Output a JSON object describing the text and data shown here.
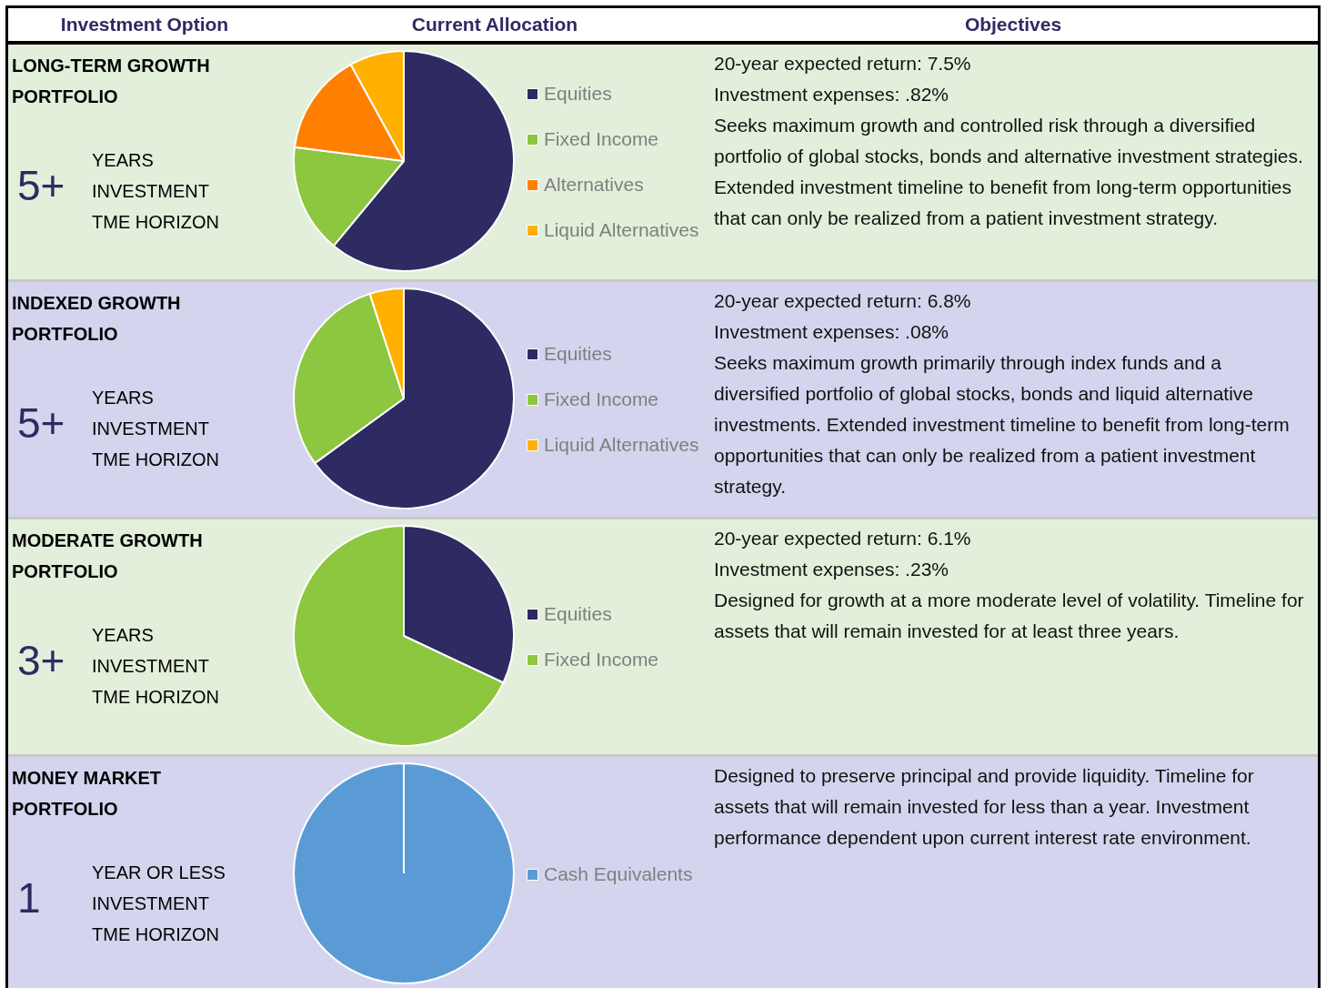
{
  "chart_data": [
    {
      "type": "other",
      "annotations": [
        "Investment Option",
        "Current Allocation",
        "Objectives"
      ]
    },
    {
      "type": "other",
      "title": "LONG-TERM GROWTH PORTFOLIO",
      "annotations": [
        "5+",
        "YEARS",
        "INVESTMENT",
        "TME HORIZON"
      ]
    },
    {
      "type": "pie",
      "categories": [
        "Equities",
        "Fixed Income",
        "Alternatives",
        "Liquid Alternatives"
      ],
      "values": [
        61,
        16,
        15,
        8
      ],
      "colors": [
        "#2e2a62",
        "#8dc63f",
        "#ff8000",
        "#ffb000"
      ],
      "legend": "right"
    },
    {
      "type": "other",
      "annotations": [
        "20-year expected return: 7.5%",
        "Investment expenses: .82%",
        "Seeks maximum growth and controlled risk through a diversified portfolio of global stocks, bonds and alternative investment strategies. Extended investment timeline to benefit from long-term opportunities that can only be realized from a patient investment strategy."
      ]
    },
    {
      "type": "other",
      "title": "INDEXED GROWTH PORTFOLIO",
      "annotations": [
        "5+",
        "YEARS",
        "INVESTMENT",
        "TME HORIZON"
      ]
    },
    {
      "type": "pie",
      "categories": [
        "Equities",
        "Fixed Income",
        "Liquid Alternatives"
      ],
      "values": [
        65,
        30,
        5
      ],
      "colors": [
        "#2e2a62",
        "#8dc63f",
        "#ffb000"
      ],
      "legend": "right"
    },
    {
      "type": "other",
      "annotations": [
        "20-year expected return: 6.8%",
        "Investment expenses: .08%",
        "Seeks maximum growth primarily through index funds and a diversified portfolio of global stocks, bonds and liquid alternative investments. Extended investment timeline to benefit from long-term opportunities that can only be realized from a patient investment strategy."
      ]
    },
    {
      "type": "other",
      "title": "MODERATE GROWTH PORTFOLIO",
      "annotations": [
        "3+",
        "YEARS",
        "INVESTMENT",
        "TME HORIZON"
      ]
    },
    {
      "type": "pie",
      "categories": [
        "Equities",
        "Fixed Income"
      ],
      "values": [
        32,
        68
      ],
      "colors": [
        "#2e2a62",
        "#8dc63f"
      ],
      "legend": "right"
    },
    {
      "type": "other",
      "annotations": [
        "20-year expected return: 6.1%",
        "Investment expenses: .23%",
        "Designed for growth at a more moderate level of volatility. Timeline for assets that will remain invested for at least three years."
      ]
    },
    {
      "type": "other",
      "title": "MONEY MARKET PORTFOLIO",
      "annotations": [
        "1",
        "YEAR OR LESS",
        "INVESTMENT",
        "TME HORIZON"
      ]
    },
    {
      "type": "pie",
      "categories": [
        "Cash Equivalents"
      ],
      "values": [
        100
      ],
      "colors": [
        "#5b9bd5"
      ],
      "legend": "right"
    },
    {
      "type": "other",
      "annotations": [
        "Designed to preserve principal and provide liquidity. Timeline for assets that will remain invested for less than a year. Investment performance dependent upon current interest rate environment."
      ]
    }
  ]
}
